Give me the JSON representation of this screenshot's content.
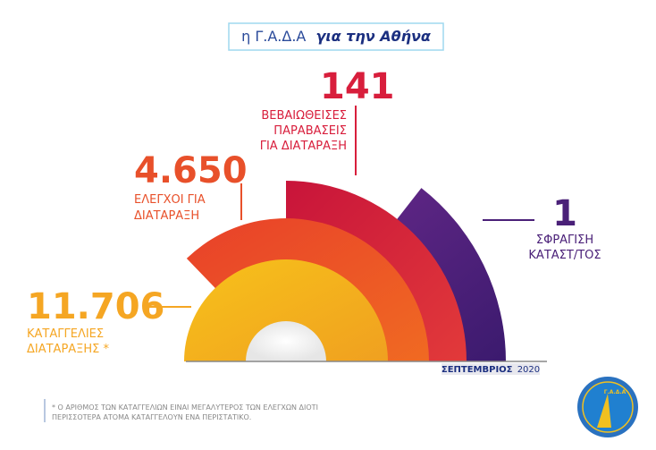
{
  "header": {
    "prefix": "η Γ.Α.Δ.Α",
    "title": "για την Αθήνα"
  },
  "items": [
    {
      "number": "11.706",
      "label": [
        "ΚΑΤΑΓΓΕΛΙΕΣ",
        "ΔΙΑΤΑΡΑΞΗΣ  *"
      ]
    },
    {
      "number": "4.650",
      "label": [
        "ΕΛΕΓΧΟΙ ΓΙΑ",
        "ΔΙΑΤΑΡΑΞΗ"
      ]
    },
    {
      "number": "141",
      "label": [
        "ΒΕΒΑΙΩΘΕΙΣΕΣ",
        "ΠΑΡΑΒΑΣΕΙΣ",
        "ΓΙΑ ΔΙΑΤΑΡΑΞΗ"
      ]
    },
    {
      "number": "1",
      "label": [
        "ΣΦΡΑΓΙΣΗ",
        "ΚΑΤΑΣΤ/ΤΟΣ"
      ]
    }
  ],
  "date": {
    "month": "ΣΕΠΤΕΜΒΡΙΟΣ",
    "year": "2020"
  },
  "footnote": [
    "* Ο ΑΡΙΘΜΟΣ ΤΩΝ ΚΑΤΑΓΓΕΛΙΩΝ ΕΙΝΑΙ ΜΕΓΑΛΥΤΕΡΟΣ ΤΩΝ ΕΛΕΓΧΩΝ ΔΙΟΤΙ",
    "ΠΕΡΙΣΣΟΤΕΡΑ ΑΤΟΜΑ ΚΑΤΑΓΓΕΛΟΥΝ ΕΝΑ ΠΕΡΙΣΤΑΤΙΚΟ."
  ],
  "logo": "Γ.Α.Δ.Α"
}
